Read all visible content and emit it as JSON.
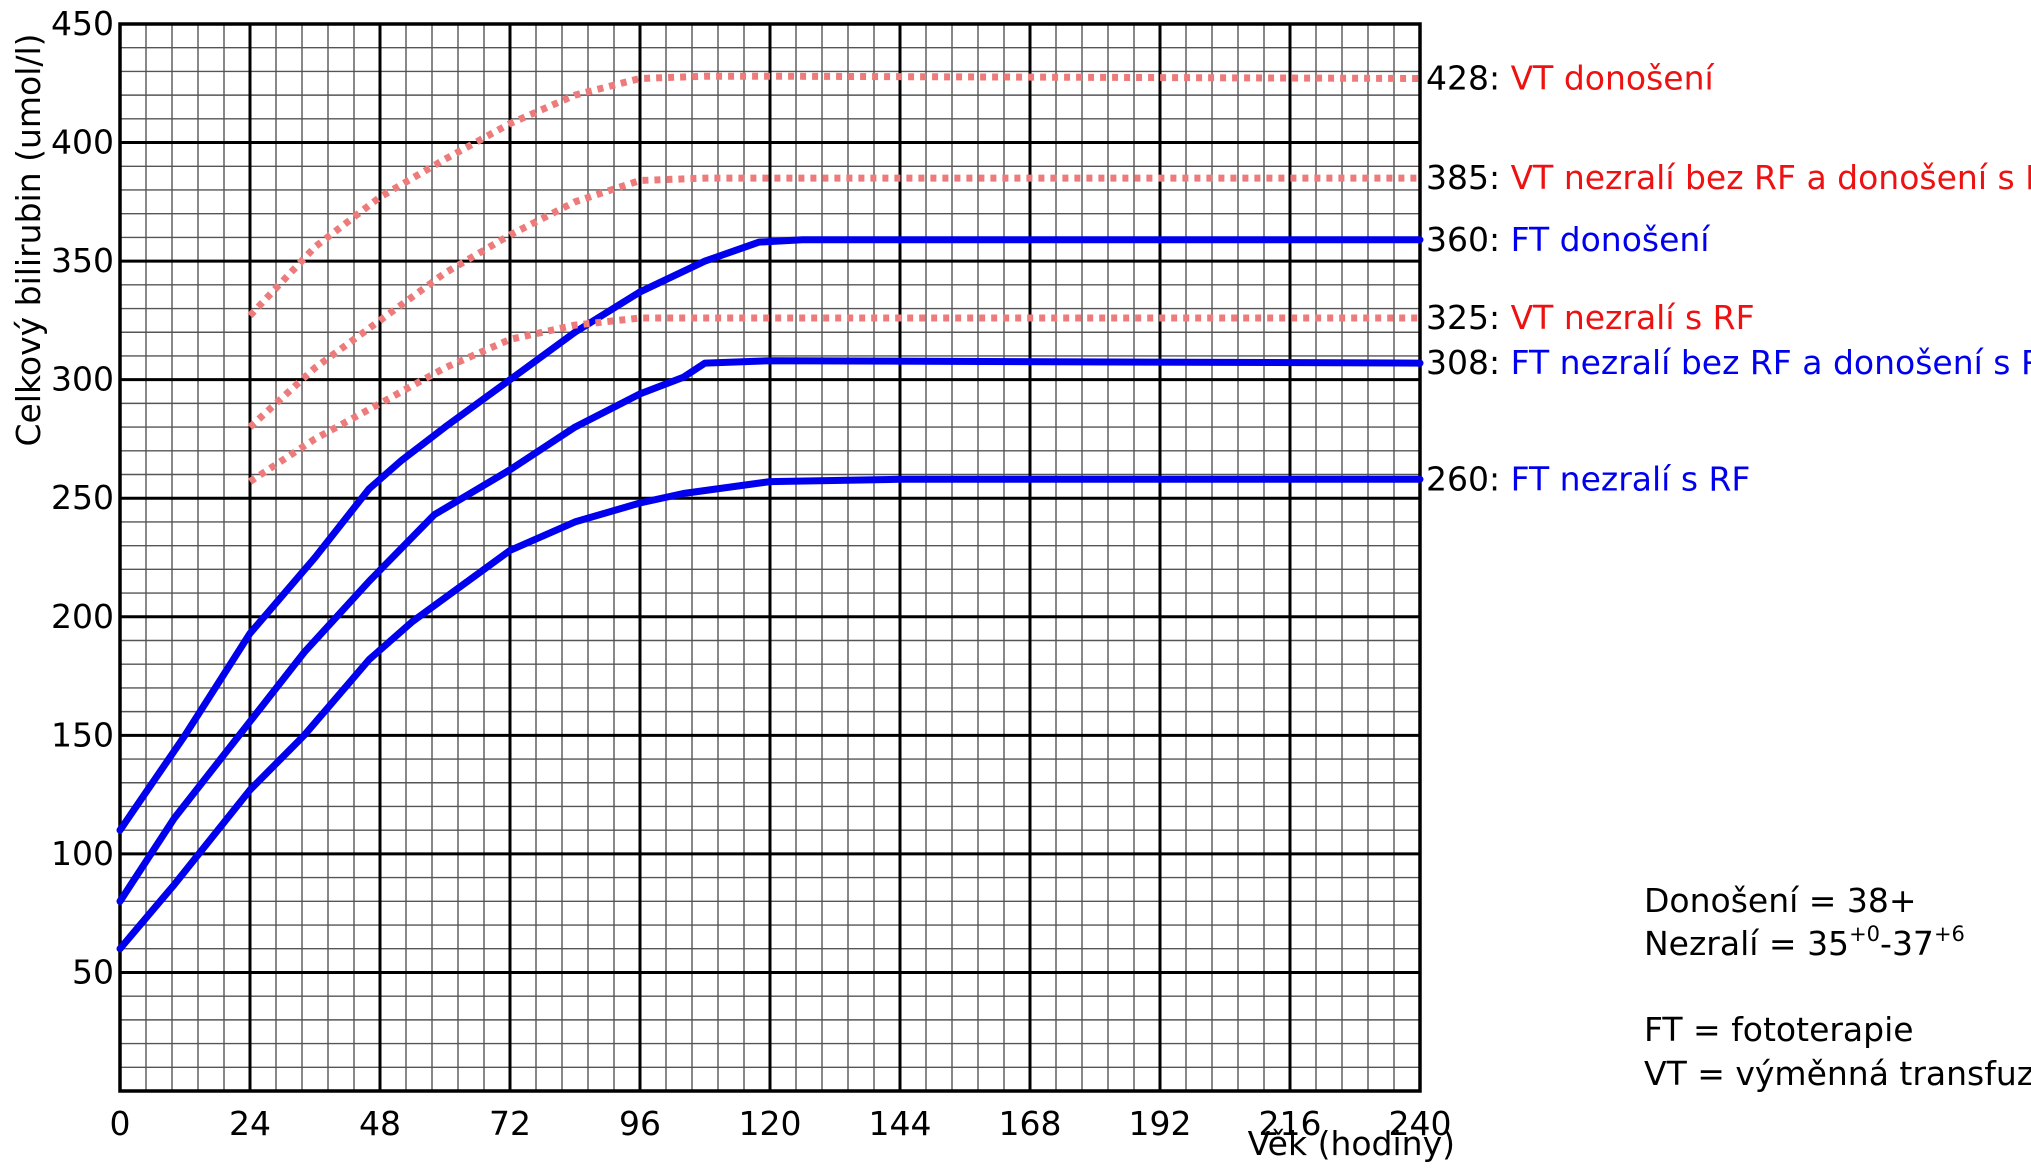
{
  "chart_data": {
    "type": "line",
    "xlabel": "Věk (hodiny)",
    "ylabel": "Celkový bilirubin (umol/l)",
    "xlim": [
      0,
      240
    ],
    "ylim": [
      0,
      450
    ],
    "x_ticks": [
      "0",
      "24",
      "48",
      "72",
      "96",
      "120",
      "144",
      "168",
      "192",
      "216",
      "240"
    ],
    "y_ticks": [
      "50",
      "100",
      "150",
      "200",
      "250",
      "300",
      "350",
      "400",
      "450"
    ],
    "x_tick_values": [
      0,
      24,
      48,
      72,
      96,
      120,
      144,
      168,
      192,
      216,
      240
    ],
    "y_tick_values": [
      50,
      100,
      150,
      200,
      250,
      300,
      350,
      400,
      450
    ],
    "grid": true,
    "minor_grid_x_step": 4.8,
    "minor_grid_y_step": 10,
    "colors": {
      "ft": "#0000ee",
      "vt": "#ee7b7b",
      "vt_label": "#ee1111",
      "grid_major": "#000000",
      "grid_minor": "#555555"
    },
    "series": [
      {
        "value_label": "428:",
        "name": "VT donošení",
        "style": "dotted",
        "color": "#ee7b7b",
        "label_color": "#ee1111",
        "points": [
          [
            24,
            327
          ],
          [
            36,
            356
          ],
          [
            48,
            377
          ],
          [
            60,
            393
          ],
          [
            72,
            408
          ],
          [
            84,
            420
          ],
          [
            96,
            427
          ],
          [
            108,
            428
          ],
          [
            120,
            428
          ],
          [
            240,
            427
          ]
        ]
      },
      {
        "value_label": "385:",
        "name": "VT nezralí bez RF a donošení s RF",
        "style": "dotted",
        "color": "#ee7b7b",
        "label_color": "#ee1111",
        "points": [
          [
            24,
            280
          ],
          [
            36,
            305
          ],
          [
            48,
            325
          ],
          [
            60,
            345
          ],
          [
            72,
            361
          ],
          [
            84,
            375
          ],
          [
            96,
            384
          ],
          [
            108,
            385
          ],
          [
            120,
            385
          ],
          [
            240,
            385
          ]
        ]
      },
      {
        "value_label": "360:",
        "name": "FT donošení",
        "style": "solid",
        "color": "#0000ee",
        "label_color": "#0000ee",
        "points": [
          [
            0,
            110
          ],
          [
            12,
            150
          ],
          [
            24,
            193
          ],
          [
            36,
            225
          ],
          [
            46,
            254
          ],
          [
            52,
            266
          ],
          [
            60,
            280
          ],
          [
            72,
            300
          ],
          [
            84,
            320
          ],
          [
            96,
            337
          ],
          [
            108,
            350
          ],
          [
            118,
            358
          ],
          [
            126,
            359
          ],
          [
            240,
            359
          ]
        ]
      },
      {
        "value_label": "325:",
        "name": "VT nezralí s RF",
        "style": "dotted",
        "color": "#ee7b7b",
        "label_color": "#ee1111",
        "points": [
          [
            24,
            257
          ],
          [
            36,
            275
          ],
          [
            48,
            290
          ],
          [
            60,
            305
          ],
          [
            72,
            317
          ],
          [
            84,
            323
          ],
          [
            96,
            326
          ],
          [
            120,
            326
          ],
          [
            240,
            326
          ]
        ]
      },
      {
        "value_label": "308:",
        "name": "FT nezralí bez RF a donošení s RF",
        "style": "solid",
        "color": "#0000ee",
        "label_color": "#0000ee",
        "points": [
          [
            0,
            80
          ],
          [
            10,
            115
          ],
          [
            22,
            150
          ],
          [
            34,
            185
          ],
          [
            46,
            215
          ],
          [
            58,
            243
          ],
          [
            72,
            262
          ],
          [
            84,
            280
          ],
          [
            96,
            294
          ],
          [
            104,
            301
          ],
          [
            108,
            307
          ],
          [
            120,
            308
          ],
          [
            240,
            307
          ]
        ]
      },
      {
        "value_label": "260:",
        "name": "FT nezralí s RF",
        "style": "solid",
        "color": "#0000ee",
        "label_color": "#0000ee",
        "points": [
          [
            0,
            60
          ],
          [
            10,
            87
          ],
          [
            24,
            127
          ],
          [
            34,
            150
          ],
          [
            46,
            182
          ],
          [
            54,
            198
          ],
          [
            72,
            228
          ],
          [
            84,
            240
          ],
          [
            96,
            248
          ],
          [
            104,
            252
          ],
          [
            120,
            257
          ],
          [
            144,
            258
          ],
          [
            240,
            258
          ]
        ]
      }
    ]
  },
  "legend_notes": {
    "donoseni": "Donošení = 38+",
    "nezrali_prefix": "Nezralí = 35",
    "nezrali_sup1": "+0",
    "nezrali_mid": "-37",
    "nezrali_sup2": "+6",
    "ft": "FT = fototerapie",
    "vt": "VT = výměnná transfuze"
  }
}
